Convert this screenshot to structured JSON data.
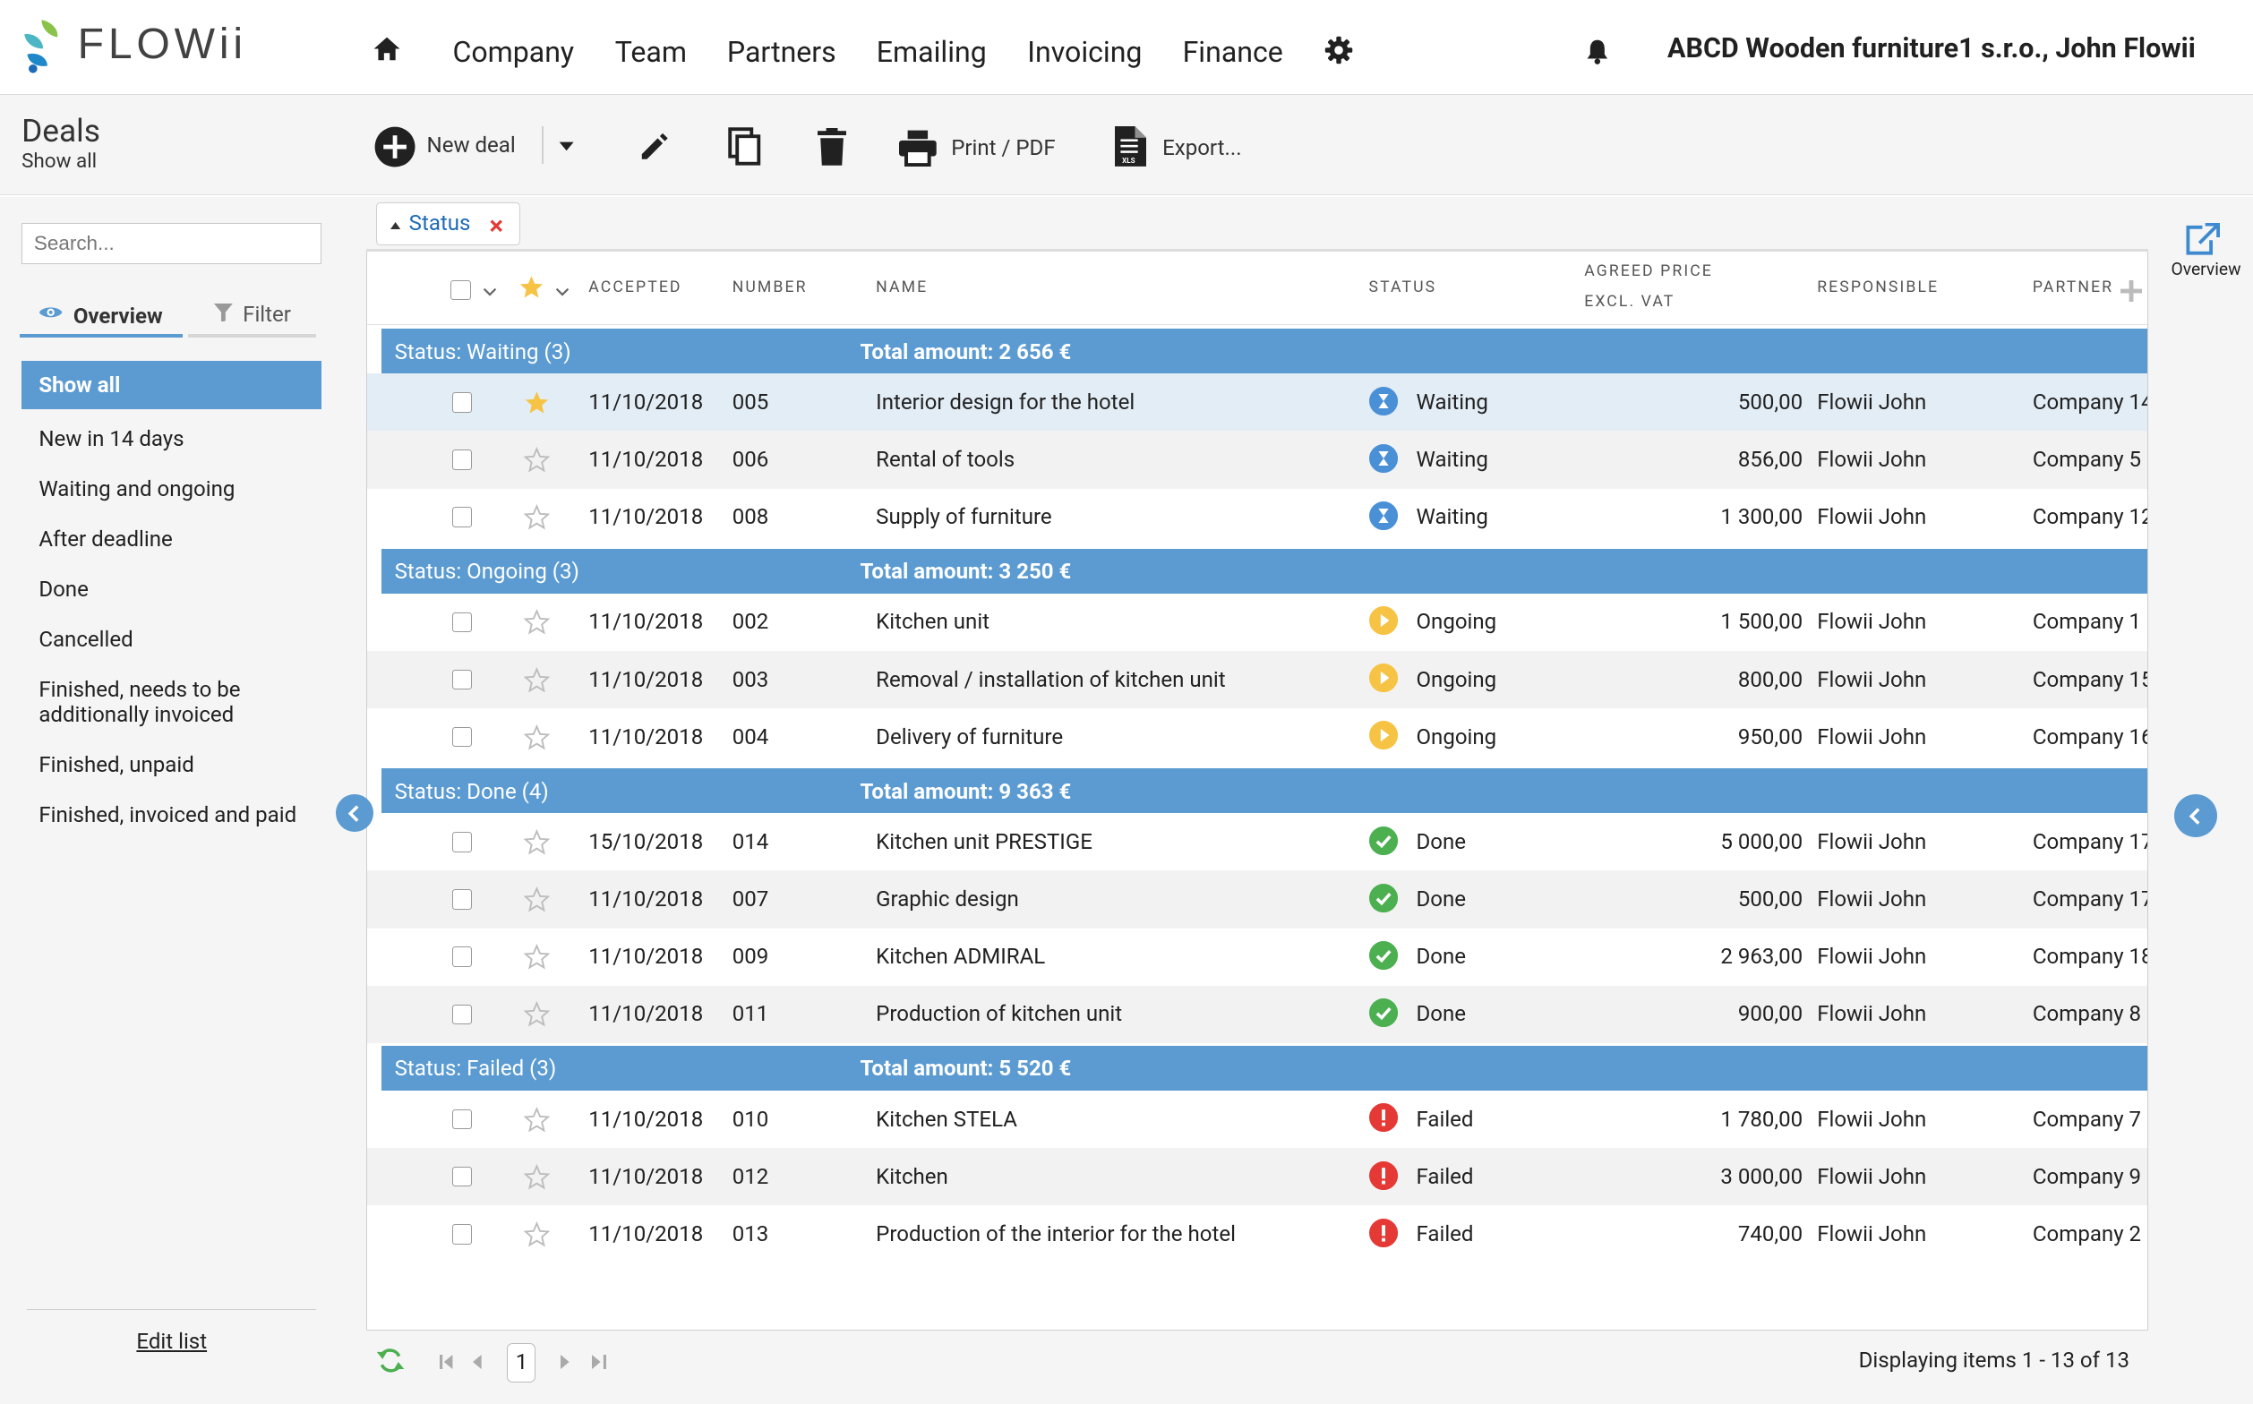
{
  "app": {
    "logo": "FLOWii"
  },
  "nav": {
    "items": [
      "Company",
      "Team",
      "Partners",
      "Emailing",
      "Invoicing",
      "Finance"
    ],
    "company": "ABCD Wooden furniture1 s.r.o., John Flowii"
  },
  "module": {
    "title": "Deals",
    "subtitle": "Show all"
  },
  "toolbar": {
    "new_deal": "New deal",
    "print": "Print / PDF",
    "export": "Export...",
    "xls": "XLS"
  },
  "sidebar": {
    "search_placeholder": "Search...",
    "tab_overview": "Overview",
    "tab_filter": "Filter",
    "active_item": "Show all",
    "items": [
      "New in 14 days",
      "Waiting and ongoing",
      "After deadline",
      "Done",
      "Cancelled",
      "Finished, needs to be additionally invoiced",
      "Finished, unpaid",
      "Finished, invoiced and paid"
    ],
    "edit_list": "Edit list"
  },
  "filter_chip": {
    "label": "Status"
  },
  "right_panel": {
    "overview_label": "Overview"
  },
  "columns": {
    "accepted": "ACCEPTED",
    "number": "NUMBER",
    "name": "NAME",
    "status": "STATUS",
    "price_1": "AGREED PRICE",
    "price_2": "EXCL. VAT",
    "responsible": "RESPONSIBLE",
    "partner": "PARTNER"
  },
  "status_colors": {
    "Waiting": "#4a90d6",
    "Ongoing": "#f6c344",
    "Done": "#4caf50",
    "Failed": "#e53935"
  },
  "groups": [
    {
      "label": "Status: Waiting (3)",
      "total": "Total amount: 2 656 €",
      "rows": [
        {
          "accepted": "11/10/2018",
          "number": "005",
          "name": "Interior design for the hotel",
          "status": "Waiting",
          "price": "500,00",
          "responsible": "Flowii John",
          "partner": "Company 14",
          "starred": true,
          "selected": true
        },
        {
          "accepted": "11/10/2018",
          "number": "006",
          "name": "Rental of tools",
          "status": "Waiting",
          "price": "856,00",
          "responsible": "Flowii John",
          "partner": "Company 5",
          "starred": false,
          "selected": false
        },
        {
          "accepted": "11/10/2018",
          "number": "008",
          "name": "Supply of furniture",
          "status": "Waiting",
          "price": "1 300,00",
          "responsible": "Flowii John",
          "partner": "Company 12",
          "starred": false,
          "selected": false
        }
      ]
    },
    {
      "label": "Status: Ongoing (3)",
      "total": "Total amount: 3 250 €",
      "rows": [
        {
          "accepted": "11/10/2018",
          "number": "002",
          "name": "Kitchen unit",
          "status": "Ongoing",
          "price": "1 500,00",
          "responsible": "Flowii John",
          "partner": "Company 1",
          "starred": false,
          "selected": false
        },
        {
          "accepted": "11/10/2018",
          "number": "003",
          "name": "Removal / installation of kitchen unit",
          "status": "Ongoing",
          "price": "800,00",
          "responsible": "Flowii John",
          "partner": "Company 15",
          "starred": false,
          "selected": false
        },
        {
          "accepted": "11/10/2018",
          "number": "004",
          "name": "Delivery of furniture",
          "status": "Ongoing",
          "price": "950,00",
          "responsible": "Flowii John",
          "partner": "Company 16",
          "starred": false,
          "selected": false
        }
      ]
    },
    {
      "label": "Status: Done (4)",
      "total": "Total amount: 9 363 €",
      "rows": [
        {
          "accepted": "15/10/2018",
          "number": "014",
          "name": "Kitchen unit PRESTIGE",
          "status": "Done",
          "price": "5 000,00",
          "responsible": "Flowii John",
          "partner": "Company 17",
          "starred": false,
          "selected": false
        },
        {
          "accepted": "11/10/2018",
          "number": "007",
          "name": "Graphic design",
          "status": "Done",
          "price": "500,00",
          "responsible": "Flowii John",
          "partner": "Company 17",
          "starred": false,
          "selected": false
        },
        {
          "accepted": "11/10/2018",
          "number": "009",
          "name": "Kitchen ADMIRAL",
          "status": "Done",
          "price": "2 963,00",
          "responsible": "Flowii John",
          "partner": "Company 18",
          "starred": false,
          "selected": false
        },
        {
          "accepted": "11/10/2018",
          "number": "011",
          "name": "Production of kitchen unit",
          "status": "Done",
          "price": "900,00",
          "responsible": "Flowii John",
          "partner": "Company 8",
          "starred": false,
          "selected": false
        }
      ]
    },
    {
      "label": "Status: Failed (3)",
      "total": "Total amount: 5 520 €",
      "rows": [
        {
          "accepted": "11/10/2018",
          "number": "010",
          "name": "Kitchen STELA",
          "status": "Failed",
          "price": "1 780,00",
          "responsible": "Flowii John",
          "partner": "Company 7",
          "starred": false,
          "selected": false
        },
        {
          "accepted": "11/10/2018",
          "number": "012",
          "name": "Kitchen",
          "status": "Failed",
          "price": "3 000,00",
          "responsible": "Flowii John",
          "partner": "Company 9",
          "starred": false,
          "selected": false
        },
        {
          "accepted": "11/10/2018",
          "number": "013",
          "name": "Production of the interior for the hotel",
          "status": "Failed",
          "price": "740,00",
          "responsible": "Flowii John",
          "partner": "Company 2",
          "starred": false,
          "selected": false
        }
      ]
    }
  ],
  "pager": {
    "page": "1",
    "summary": "Displaying items 1 - 13 of 13"
  }
}
